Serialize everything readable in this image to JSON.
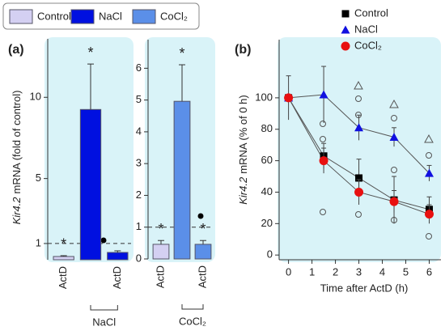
{
  "chart_data": [
    {
      "type": "bar",
      "panel": "(a)",
      "ylabel_italic": "Kir4.2",
      "ylabel": "mRNA (fold of control)",
      "categories": [
        "ActD",
        null,
        "ActD"
      ],
      "series": [
        {
          "name": "Control",
          "color": "#d4d0f2",
          "values": [
            0.2,
            null,
            null
          ],
          "errors": [
            0.05,
            null,
            null
          ]
        },
        {
          "name": "NaCl",
          "color": "#0010e0",
          "values": [
            null,
            9.25,
            0.45
          ],
          "errors": [
            null,
            2.8,
            0.1
          ]
        }
      ],
      "annotations": [
        "*",
        "*",
        null
      ],
      "reference_line": 1,
      "group_label": "NaCl",
      "ylim": [
        0,
        13.6
      ],
      "yticks": [
        1,
        5,
        10
      ]
    },
    {
      "type": "bar",
      "categories": [
        "ActD",
        null,
        "ActD"
      ],
      "series": [
        {
          "name": "Control",
          "color": "#d4d0f2",
          "values": [
            0.46,
            null,
            null
          ],
          "errors": [
            0.12,
            null,
            null
          ]
        },
        {
          "name": "CoCl₂",
          "color": "#5b8fe8",
          "values": [
            null,
            4.96,
            0.46
          ],
          "errors": [
            null,
            1.15,
            0.12
          ]
        }
      ],
      "annotations": [
        "*",
        "*",
        "*"
      ],
      "reference_line": 1,
      "group_label": "CoCl₂",
      "ylim": [
        0,
        6.9
      ],
      "yticks": [
        0,
        1,
        2,
        3,
        4,
        5,
        6
      ]
    },
    {
      "type": "line",
      "panel": "(b)",
      "ylabel_italic": "Kir4.2",
      "ylabel": "mRNA (% of 0 h)",
      "xlabel": "Time after ActD (h)",
      "x": [
        0,
        1.5,
        3,
        4.5,
        6
      ],
      "series": [
        {
          "name": "Control",
          "color": "#000000",
          "marker": "square",
          "values": [
            100,
            63,
            49,
            35,
            29
          ],
          "errors": [
            14,
            8,
            12,
            15,
            8
          ]
        },
        {
          "name": "NaCl",
          "color": "#1010e0",
          "marker": "triangle",
          "values": [
            100,
            102,
            81,
            75,
            52
          ],
          "errors": [
            0,
            18,
            8,
            6,
            5
          ]
        },
        {
          "name": "CoCl₂",
          "color": "#e81010",
          "marker": "circle",
          "values": [
            100,
            60,
            40,
            34,
            26
          ],
          "errors": [
            0,
            8,
            8,
            7,
            6
          ]
        }
      ],
      "xlim": [
        -0.4,
        6.5
      ],
      "xticks": [
        0,
        1,
        2,
        3,
        4,
        5,
        6
      ],
      "ylim": [
        -3,
        137
      ],
      "yticks": [
        0,
        20,
        40,
        60,
        80,
        100
      ]
    }
  ]
}
